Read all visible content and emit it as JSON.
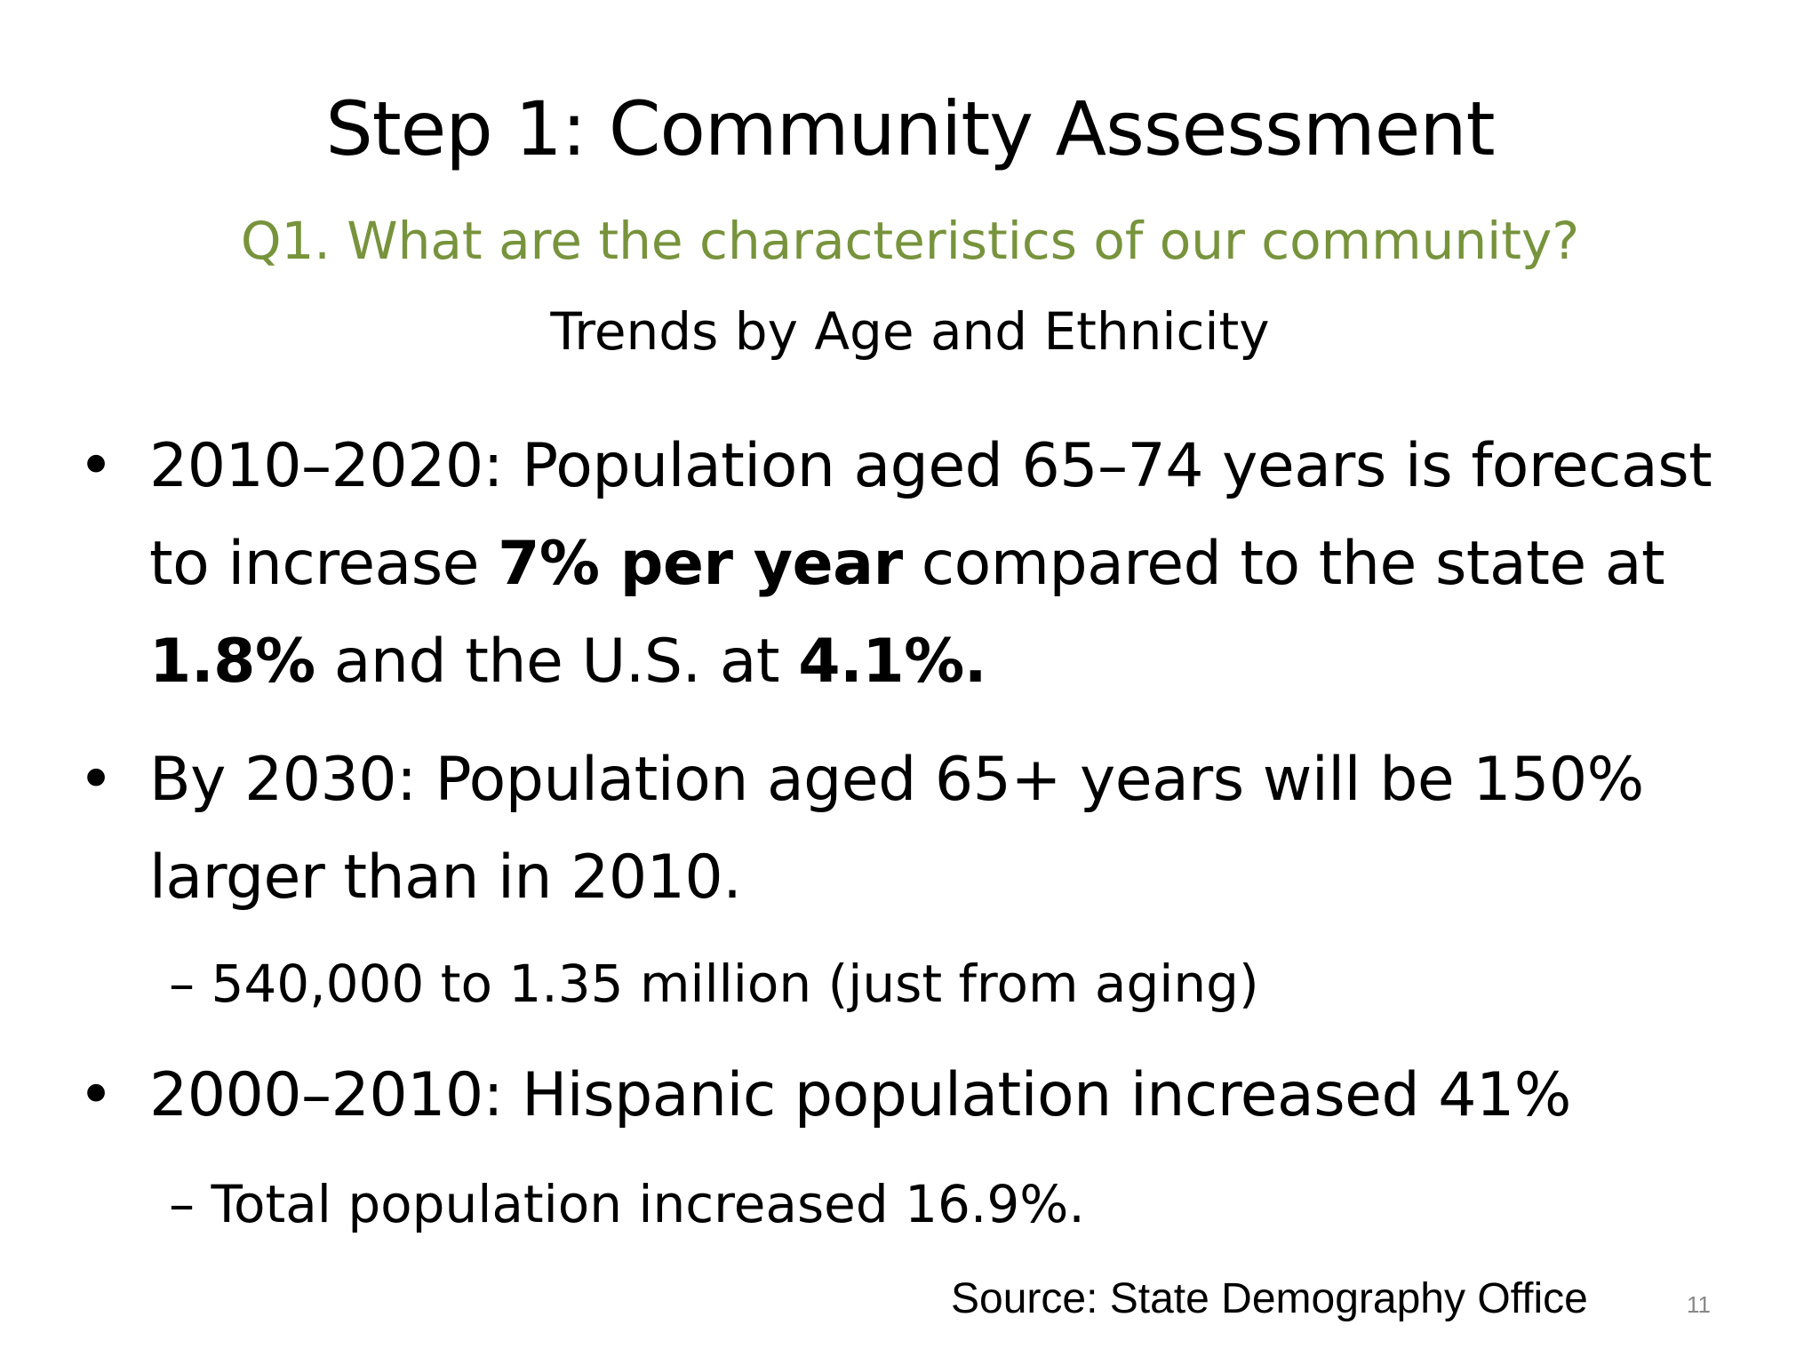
{
  "slide": {
    "title": "Step 1: Community Assessment",
    "question": "Q1. What are the characteristics of our community?",
    "subtitle": "Trends by Age and Ethnicity",
    "bullet_marker": "•",
    "sub_marker": "–",
    "bullets": [
      {
        "part1": "2010–2020: Population aged 65–74 years is forecast to increase ",
        "bold1": "7% per year",
        "part2": " compared to the state at ",
        "bold2": "1.8%",
        "part3": " and the U.S. at ",
        "bold3": "4.1%."
      },
      {
        "text": "By 2030: Population aged 65+ years will be 150% larger than in 2010.",
        "sub": "540,000 to 1.35 million (just from aging)"
      },
      {
        "text": "2000–2010: Hispanic population increased 41%",
        "sub": "Total population increased 16.9%."
      }
    ],
    "source": "Source: State Demography Office",
    "page_number": "11",
    "accent_color": "#77933c"
  }
}
